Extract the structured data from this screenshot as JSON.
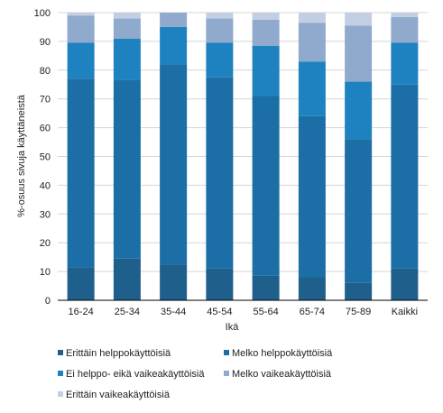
{
  "chart_data": {
    "type": "bar",
    "stacked": true,
    "xlabel": "Ikä",
    "ylabel": "%-osuus sivuja käyttäneistä",
    "ylim": [
      0,
      100
    ],
    "yticks": [
      0,
      10,
      20,
      30,
      40,
      50,
      60,
      70,
      80,
      90,
      100
    ],
    "grid": true,
    "legend_position": "bottom",
    "categories": [
      "16-24",
      "25-34",
      "35-44",
      "45-54",
      "55-64",
      "65-74",
      "75-89",
      "Kaikki"
    ],
    "series": [
      {
        "name": "Erittäin helppokäyttöisiä",
        "color": "#1f5f8b",
        "values": [
          11.5,
          14.5,
          12.5,
          11,
          8.5,
          8,
          6,
          11
        ]
      },
      {
        "name": "Melko helppokäyttöisiä",
        "color": "#1b6fa6",
        "values": [
          65.5,
          62,
          69.5,
          66.5,
          62.5,
          56,
          50,
          64
        ]
      },
      {
        "name": "Ei helppo- eikä vaikeakäyttöisiä",
        "color": "#1f82c0",
        "values": [
          12.5,
          14.5,
          13,
          12,
          17.5,
          19,
          20,
          14.5
        ]
      },
      {
        "name": "Melko vaikeakäyttöisiä",
        "color": "#8faacc",
        "values": [
          9.5,
          7,
          5,
          8.5,
          9,
          13.5,
          19.5,
          9
        ]
      },
      {
        "name": "Erittäin vaikeakäyttöisiä",
        "color": "#c2cfe3",
        "values": [
          1,
          2,
          0,
          2,
          2.5,
          3.5,
          4.5,
          1.5
        ]
      }
    ]
  }
}
